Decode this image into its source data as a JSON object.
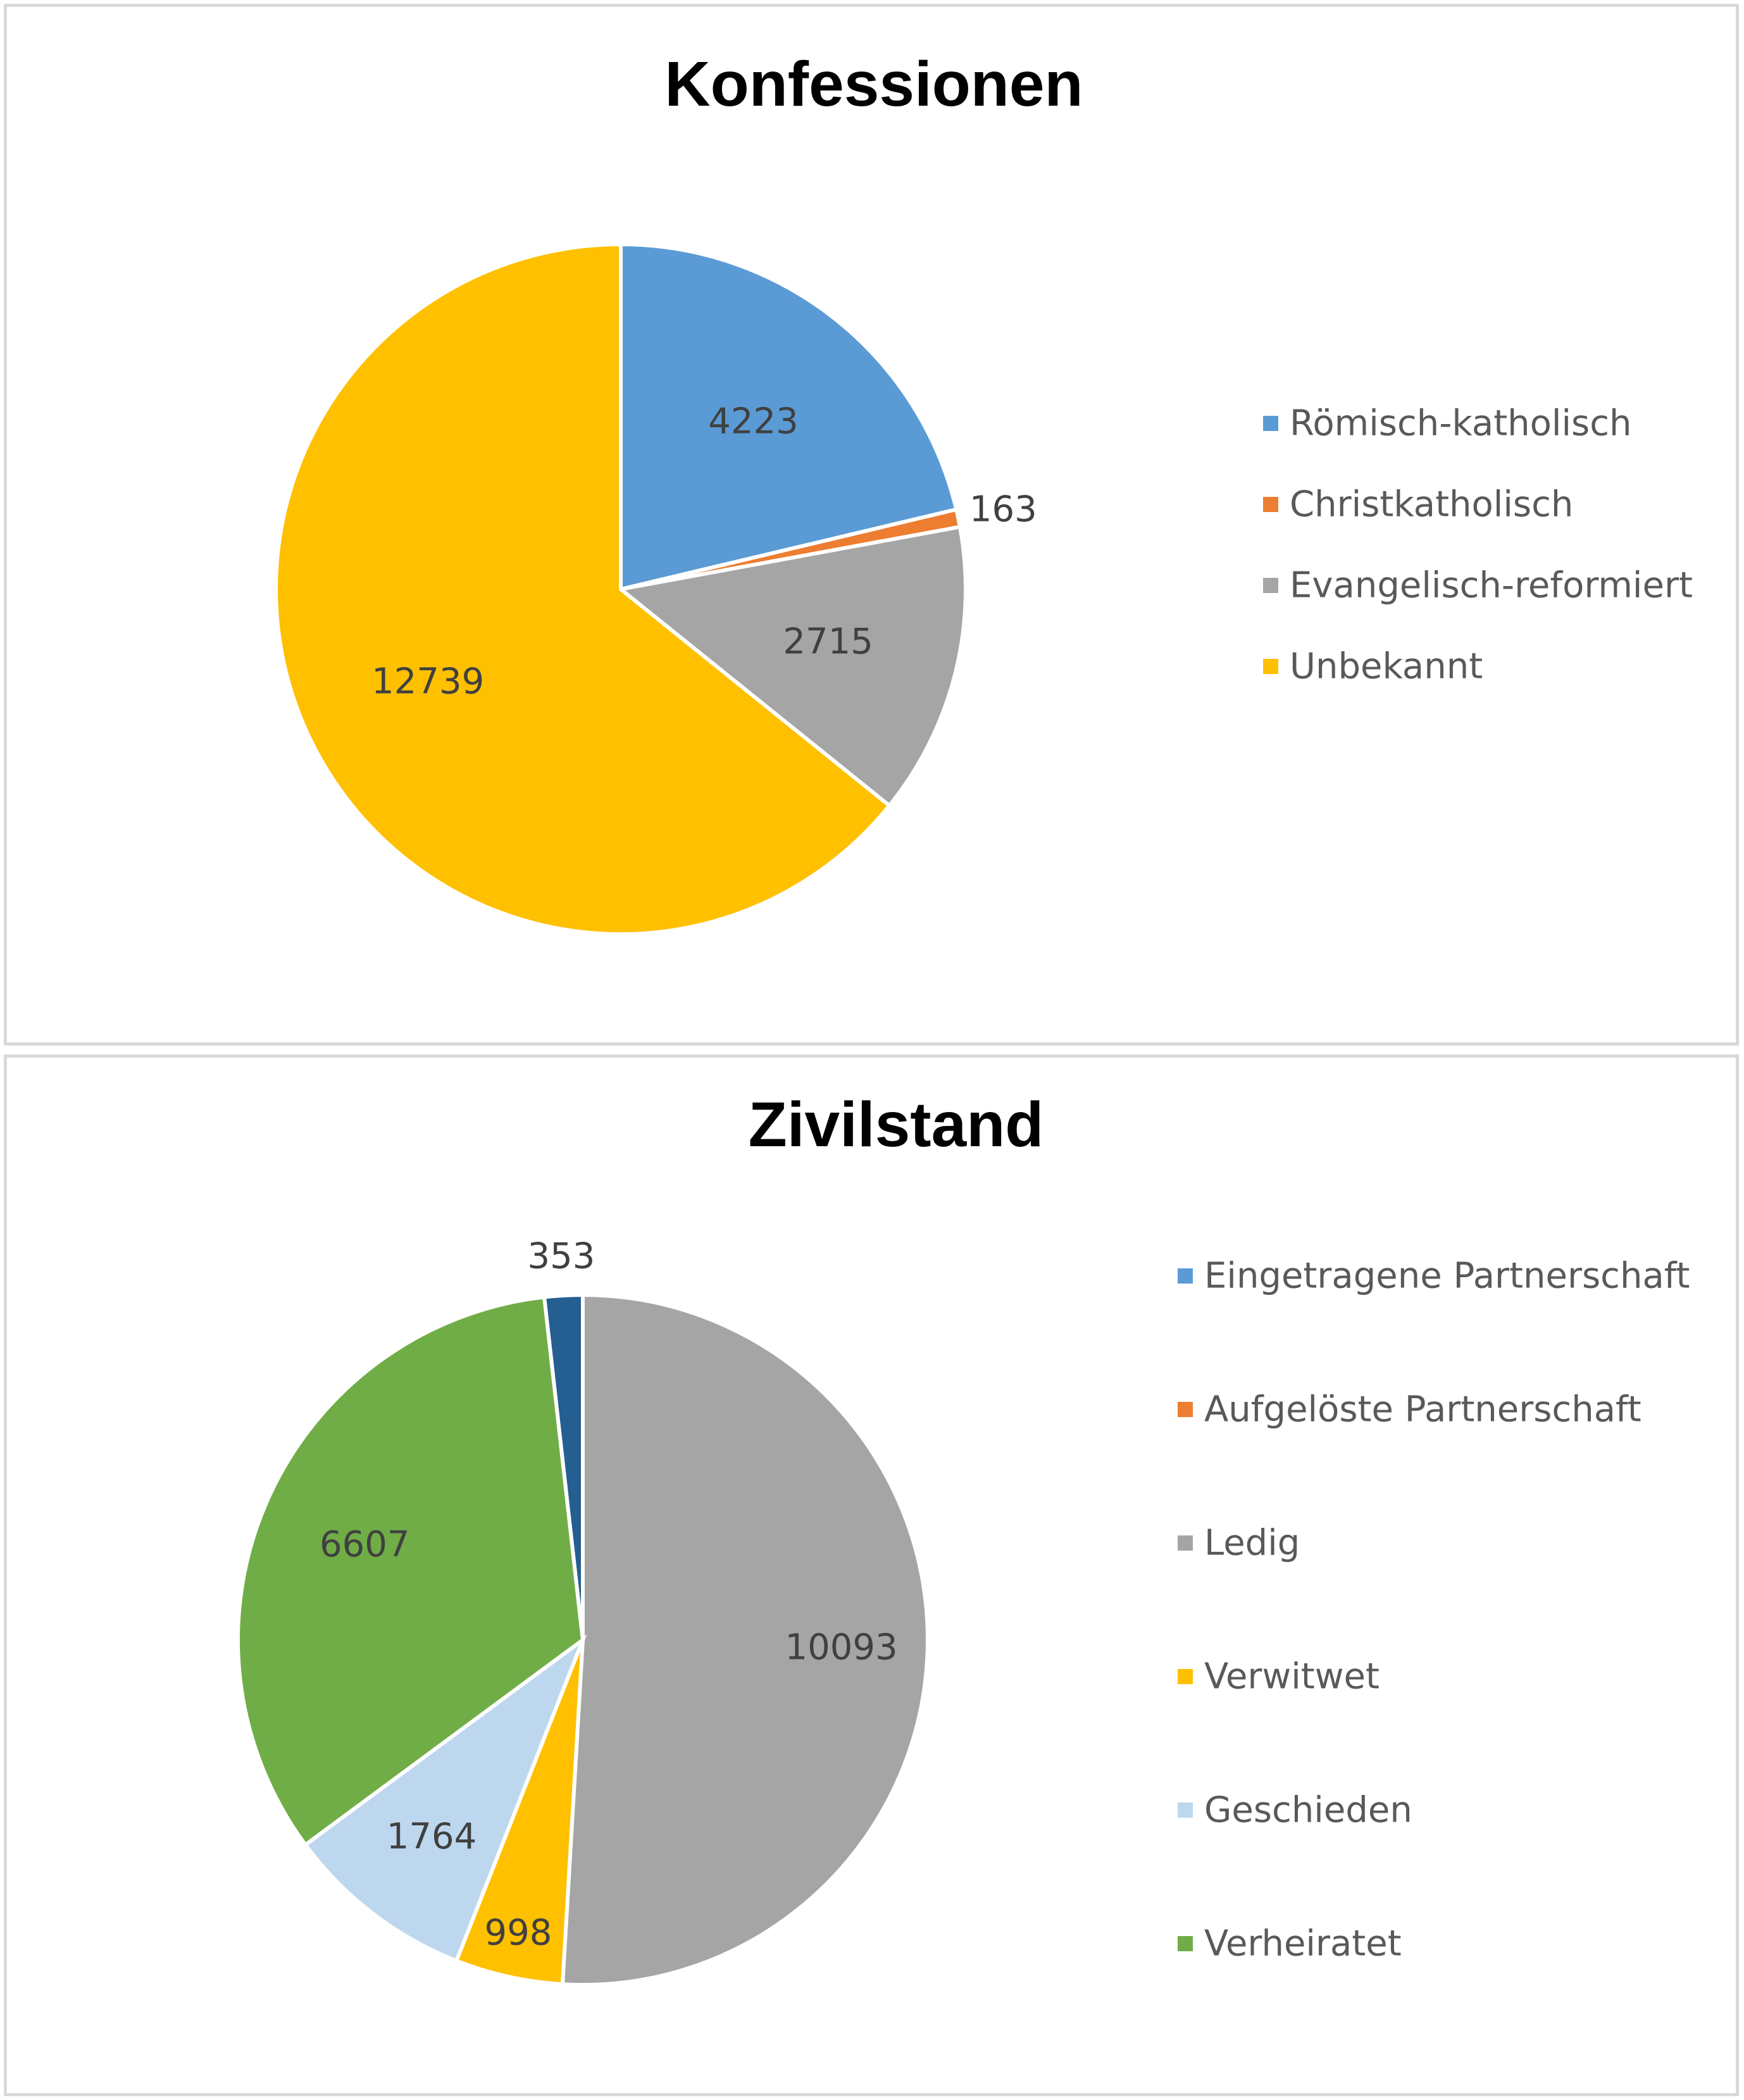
{
  "chart_data": [
    {
      "type": "pie",
      "title": "Konfessionen",
      "categories": [
        "Römisch-katholisch",
        "Christkatholisch",
        "Evangelisch-reformiert",
        "Unbekannt"
      ],
      "values": [
        4223,
        163,
        2715,
        12739
      ],
      "colors": [
        "#5b9bd5",
        "#ed7d31",
        "#a5a5a5",
        "#ffc000"
      ],
      "data_labels": [
        "4223",
        "163",
        "2715",
        "12739"
      ],
      "legend": "right"
    },
    {
      "type": "pie",
      "title": "Zivilstand",
      "categories": [
        "Eingetragene Partnerschaft",
        "Aufgelöste Partnerschaft",
        "Ledig",
        "Verwitwet",
        "Geschieden",
        "Verheiratet"
      ],
      "legend_colors": [
        "#5b9bd5",
        "#ed7d31",
        "#a5a5a5",
        "#ffc000",
        "#bdd7ee",
        "#70ad47"
      ],
      "slices": [
        {
          "value": 10093,
          "label": "10093",
          "color": "#a5a5a5"
        },
        {
          "value": 998,
          "label": "998",
          "color": "#ffc000"
        },
        {
          "value": 1764,
          "label": "1764",
          "color": "#bdd7ee"
        },
        {
          "value": 6607,
          "label": "6607",
          "color": "#70ad47"
        },
        {
          "value": 353,
          "label": "353",
          "color": "#255e91"
        }
      ],
      "legend": "right"
    }
  ]
}
